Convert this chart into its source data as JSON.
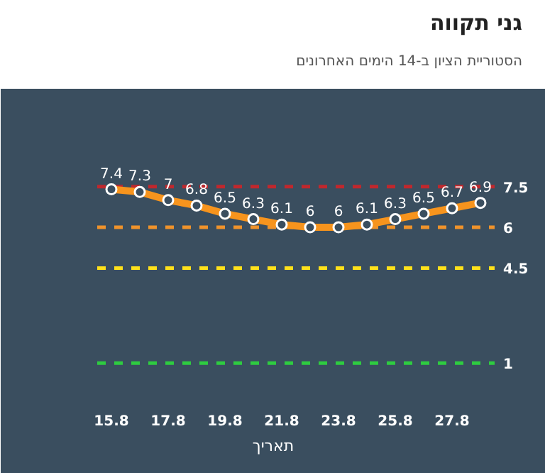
{
  "chart_data": {
    "type": "line",
    "title": "גני תקווה",
    "subtitle": "הסטוריית הציון ב-14 הימים האחרונים",
    "xlabel": "תאריך",
    "categories": [
      "15.8",
      null,
      "17.8",
      null,
      "19.8",
      null,
      "21.8",
      null,
      "23.8",
      null,
      "25.8",
      null,
      "27.8",
      null
    ],
    "series": [
      {
        "color": "#f7941d",
        "values": [
          7.4,
          7.3,
          7,
          6.8,
          6.5,
          6.3,
          6.1,
          6,
          6,
          6.1,
          6.3,
          6.5,
          6.7,
          6.9
        ]
      }
    ],
    "data_labels": true,
    "marker": "circle",
    "line_style": "solid",
    "grid": false,
    "ref_lines": [
      {
        "axis": "y",
        "value": 7.5,
        "label": "7.5",
        "color": "#c0282d",
        "line_style": "dashed"
      },
      {
        "axis": "y",
        "value": 6,
        "label": "6",
        "color": "#f0932b",
        "line_style": "dashed"
      },
      {
        "axis": "y",
        "value": 4.5,
        "label": "4.5",
        "color": "#ffe11a",
        "line_style": "dashed"
      },
      {
        "axis": "y",
        "value": 1,
        "label": "1",
        "color": "#2ecc40",
        "line_style": "dashed"
      }
    ]
  }
}
